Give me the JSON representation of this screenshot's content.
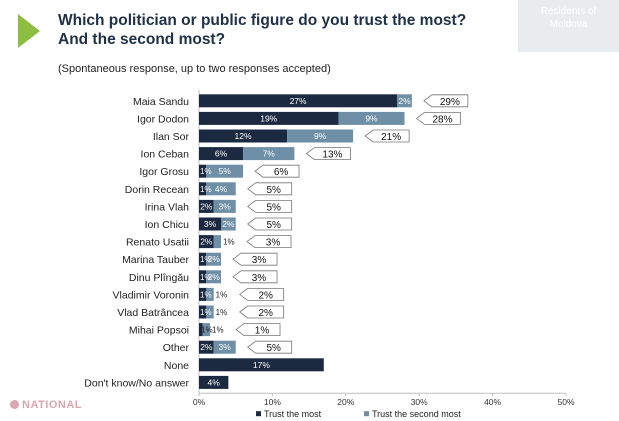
{
  "header": {
    "title_line1": "Which politician or public figure do you trust the most?",
    "title_line2": "And the second most?",
    "subtitle": "(Spontaneous response, up to two responses accepted)",
    "corner_line1": "Residents of",
    "corner_line2": "Moldova",
    "logo": "NATIONAL"
  },
  "colors": {
    "most": "#1b2a41",
    "second": "#6f8fa6",
    "accent": "#8cbf3f",
    "axis": "#bfbfbf"
  },
  "chart_data": {
    "type": "bar",
    "orientation": "horizontal",
    "stacked": true,
    "xlim": [
      0,
      50
    ],
    "x_ticks": [
      "0%",
      "10%",
      "20%",
      "30%",
      "40%",
      "50%"
    ],
    "legend_position": "bottom",
    "categories": [
      "Maia Sandu",
      "Igor Dodon",
      "Ilan Sor",
      "Ion Ceban",
      "Igor Grosu",
      "Dorin Recean",
      "Irina Vlah",
      "Ion Chicu",
      "Renato Usatii",
      "Marina Tauber",
      "Dinu Plîngău",
      "Vladimir Voronin",
      "Vlad Batrâncea",
      "Mihai Popsoi",
      "Other",
      "None",
      "Don't know/No answer"
    ],
    "series": [
      {
        "name": "Trust the most",
        "values": [
          27,
          19,
          12,
          6,
          1,
          1,
          2,
          3,
          2,
          1,
          1,
          1,
          1,
          0.5,
          2,
          17,
          4
        ],
        "labels": [
          "27%",
          "19%",
          "12%",
          "6%",
          "1%",
          "1%",
          "2%",
          "3%",
          "2%",
          "1%",
          "1%",
          "1%",
          "1%",
          "",
          "2%",
          "17%",
          "4%"
        ]
      },
      {
        "name": "Trust the second most",
        "values": [
          2,
          9,
          9,
          7,
          5,
          4,
          3,
          2,
          1,
          2,
          2,
          1,
          1,
          1,
          3,
          0,
          0
        ],
        "labels": [
          "2%",
          "9%",
          "9%",
          "7%",
          "5%",
          "4%",
          "3%",
          "2%",
          "1%",
          "2%",
          "2%",
          "1%",
          "1%",
          "1%",
          "3%",
          "",
          ""
        ]
      }
    ],
    "totals": [
      "29%",
      "28%",
      "21%",
      "13%",
      "6%",
      "5%",
      "5%",
      "5%",
      "3%",
      "3%",
      "3%",
      "2%",
      "2%",
      "1%",
      "5%",
      "",
      ""
    ],
    "extra_labels": [
      "",
      "",
      "",
      "",
      "",
      "",
      "",
      "",
      "",
      "",
      "",
      "",
      "",
      "1%",
      "",
      "",
      ""
    ]
  }
}
